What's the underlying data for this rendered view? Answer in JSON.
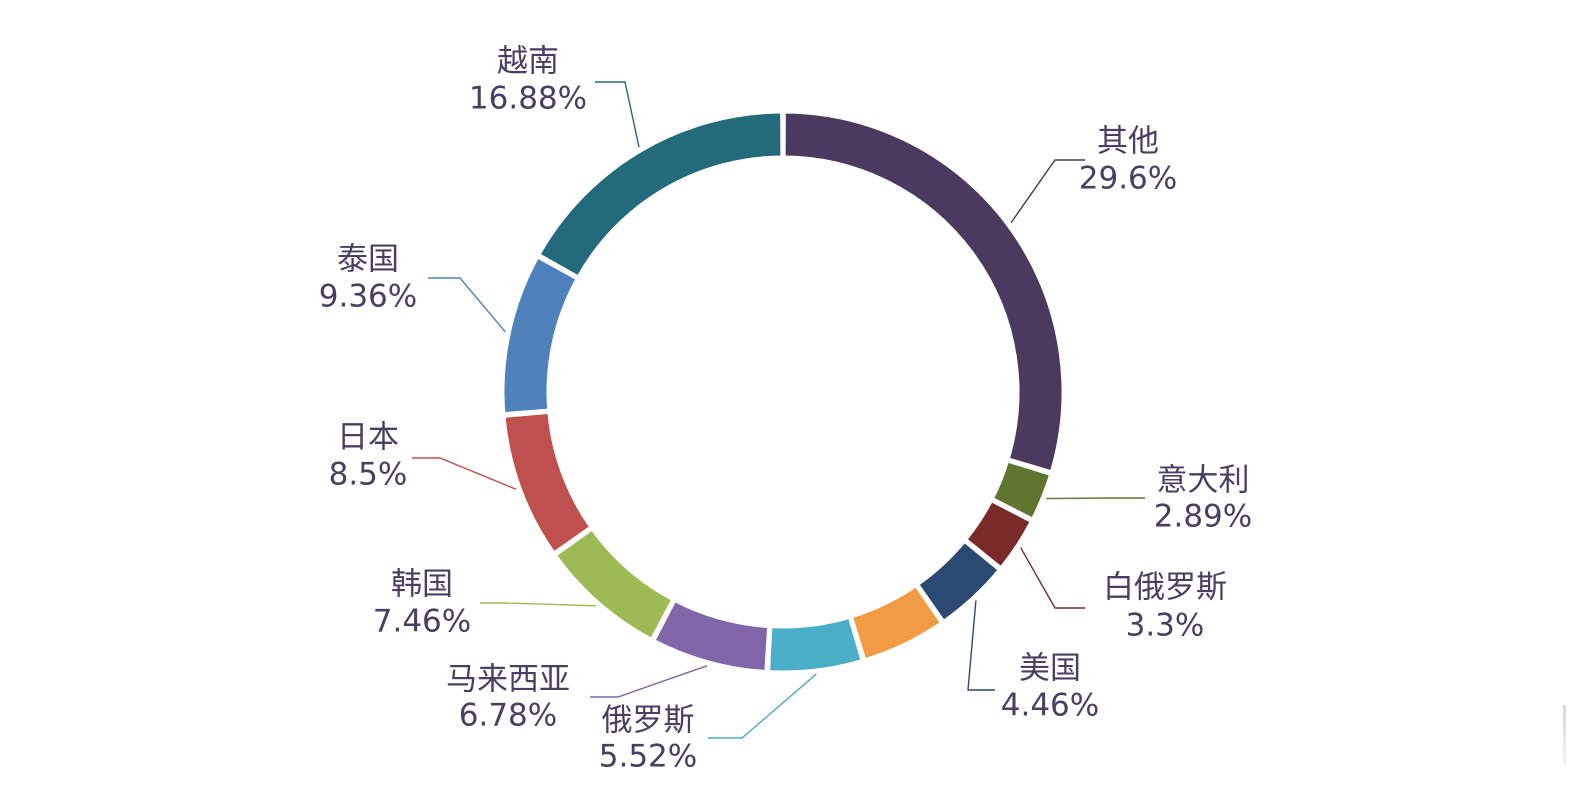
{
  "chart_data": {
    "type": "pie",
    "variant": "donut",
    "start_angle_deg": 0,
    "direction": "clockwise",
    "label_color": "#4a3e63",
    "slices": [
      {
        "name": "其他",
        "value": 29.6,
        "label": "29.6%",
        "color": "#4b3a60"
      },
      {
        "name": "意大利",
        "value": 2.89,
        "label": "2.89%",
        "color": "#5f7530"
      },
      {
        "name": "白俄罗斯",
        "value": 3.3,
        "label": "3.3%",
        "color": "#7b2a2a"
      },
      {
        "name": "美国",
        "value": 4.46,
        "label": "4.46%",
        "color": "#2a4a72"
      },
      {
        "name": "",
        "value": 5.0,
        "label": "",
        "color": "#f39a45"
      },
      {
        "name": "俄罗斯",
        "value": 5.52,
        "label": "5.52%",
        "color": "#4aaec9"
      },
      {
        "name": "马来西亚",
        "value": 6.78,
        "label": "6.78%",
        "color": "#8066a8"
      },
      {
        "name": "韩国",
        "value": 7.46,
        "label": "7.46%",
        "color": "#9cbb55"
      },
      {
        "name": "日本",
        "value": 8.5,
        "label": "8.5%",
        "color": "#bf504d"
      },
      {
        "name": "泰国",
        "value": 9.36,
        "label": "9.36%",
        "color": "#4f81bd"
      },
      {
        "name": "越南",
        "value": 16.88,
        "label": "16.88%",
        "color": "#236a7b"
      }
    ]
  }
}
